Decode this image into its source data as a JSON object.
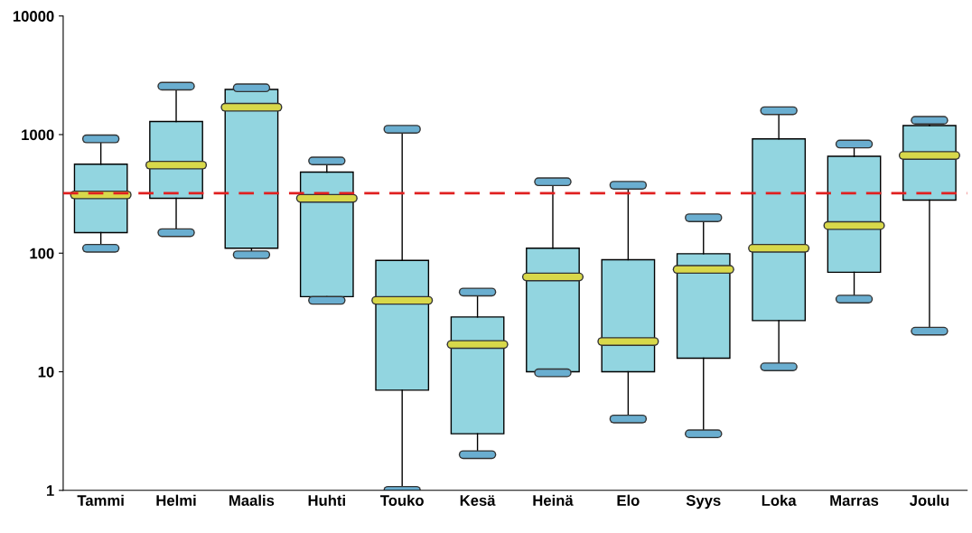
{
  "chart_data": {
    "type": "box",
    "log": "y",
    "categories": [
      "Tammi",
      "Helmi",
      "Maalis",
      "Huhti",
      "Touko",
      "Kesä",
      "Heinä",
      "Elo",
      "Syys",
      "Loka",
      "Marras",
      "Joulu"
    ],
    "color": "#92d5e0",
    "boxes": [
      {
        "low": 110,
        "q1": 149,
        "median": 310,
        "q3": 563,
        "high": 920
      },
      {
        "low": 149,
        "q1": 290,
        "median": 553,
        "q3": 1290,
        "high": 2560
      },
      {
        "low": 97,
        "q1": 110,
        "median": 1700,
        "q3": 2400,
        "high": 2480
      },
      {
        "low": 40,
        "q1": 43,
        "median": 290,
        "q3": 483,
        "high": 600
      },
      {
        "low": 1,
        "q1": 7,
        "median": 40,
        "q3": 87,
        "high": 1110
      },
      {
        "low": 2,
        "q1": 3,
        "median": 17,
        "q3": 29,
        "high": 47
      },
      {
        "low": 9.8,
        "q1": 10,
        "median": 63,
        "q3": 110,
        "high": 400
      },
      {
        "low": 4,
        "q1": 10,
        "median": 18,
        "q3": 88,
        "high": 374
      },
      {
        "low": 3,
        "q1": 13,
        "median": 73,
        "q3": 99,
        "high": 199
      },
      {
        "low": 11,
        "q1": 27,
        "median": 110,
        "q3": 920,
        "high": 1590
      },
      {
        "low": 41,
        "q1": 69,
        "median": 171,
        "q3": 656,
        "high": 832
      },
      {
        "low": 22,
        "q1": 280,
        "median": 667,
        "q3": 1190,
        "high": 1320
      }
    ],
    "ylim": [
      1,
      10000
    ],
    "yticks": [
      1,
      10,
      100,
      1000,
      10000
    ],
    "grid": false,
    "legend": false,
    "ref_lines": [
      {
        "axis": "y",
        "value": 320,
        "color": "#e02020",
        "line_style": "dashed"
      }
    ]
  }
}
